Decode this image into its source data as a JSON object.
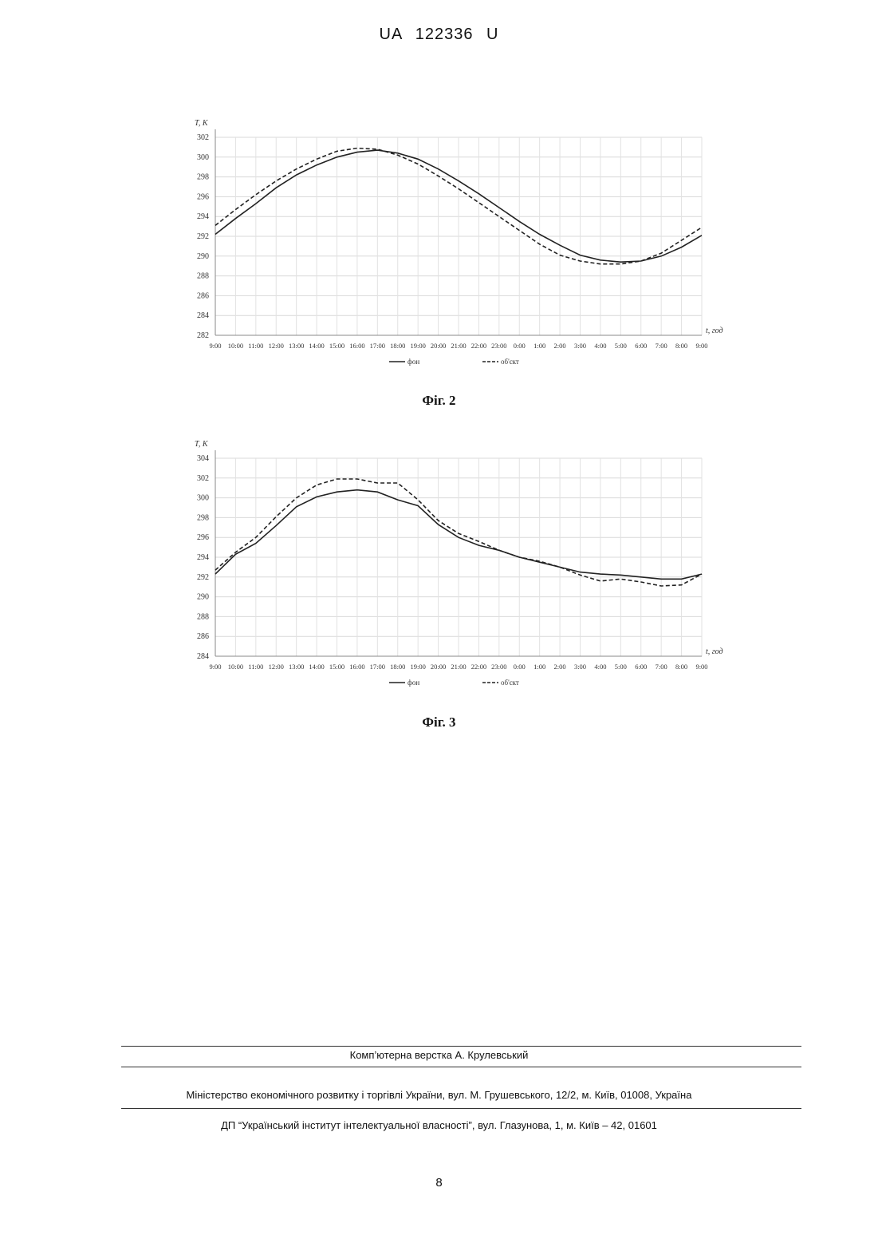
{
  "header": {
    "doc_number": "UA   122336   U"
  },
  "chart_data": [
    {
      "type": "line",
      "y_axis_label": "T, K",
      "x_axis_label": "t, год",
      "x": [
        "9:00",
        "10:00",
        "11:00",
        "12:00",
        "13:00",
        "14:00",
        "15:00",
        "16:00",
        "17:00",
        "18:00",
        "19:00",
        "20:00",
        "21:00",
        "22:00",
        "23:00",
        "0:00",
        "1:00",
        "2:00",
        "3:00",
        "4:00",
        "5:00",
        "6:00",
        "7:00",
        "8:00",
        "9:00"
      ],
      "ylim": [
        282,
        302
      ],
      "yticks": [
        282,
        284,
        286,
        288,
        290,
        292,
        294,
        296,
        298,
        300,
        302
      ],
      "series": [
        {
          "name": "фон",
          "style": "solid",
          "values": [
            292.2,
            293.8,
            295.3,
            296.9,
            298.2,
            299.2,
            300.0,
            300.5,
            300.7,
            300.4,
            299.8,
            298.8,
            297.6,
            296.3,
            294.9,
            293.5,
            292.2,
            291.1,
            290.1,
            289.6,
            289.4,
            289.5,
            290.0,
            290.9,
            292.1
          ]
        },
        {
          "name": "об'єкт",
          "style": "dashed",
          "values": [
            293.1,
            294.7,
            296.2,
            297.6,
            298.8,
            299.8,
            300.6,
            300.9,
            300.8,
            300.2,
            299.3,
            298.1,
            296.8,
            295.4,
            294.0,
            292.6,
            291.2,
            290.1,
            289.5,
            289.2,
            289.2,
            289.5,
            290.3,
            291.6,
            292.9
          ]
        }
      ],
      "legend": "bottom",
      "grid": true
    },
    {
      "type": "line",
      "y_axis_label": "T, K",
      "x_axis_label": "t, год",
      "x": [
        "9:00",
        "10:00",
        "11:00",
        "12:00",
        "13:00",
        "14:00",
        "15:00",
        "16:00",
        "17:00",
        "18:00",
        "19:00",
        "20:00",
        "21:00",
        "22:00",
        "23:00",
        "0:00",
        "1:00",
        "2:00",
        "3:00",
        "4:00",
        "5:00",
        "6:00",
        "7:00",
        "8:00",
        "9:00"
      ],
      "ylim": [
        284,
        304
      ],
      "yticks": [
        284,
        286,
        288,
        290,
        292,
        294,
        296,
        298,
        300,
        302,
        304
      ],
      "series": [
        {
          "name": "фон",
          "style": "solid",
          "values": [
            292.3,
            294.3,
            295.4,
            297.2,
            299.1,
            300.1,
            300.6,
            300.8,
            300.6,
            299.8,
            299.2,
            297.3,
            296.0,
            295.2,
            294.7,
            294.0,
            293.5,
            293.0,
            292.5,
            292.3,
            292.2,
            292.0,
            291.8,
            291.8,
            292.3
          ]
        },
        {
          "name": "об'єкт",
          "style": "dashed",
          "values": [
            292.7,
            294.5,
            296.0,
            298.1,
            300.0,
            301.3,
            301.9,
            301.9,
            301.5,
            301.5,
            299.8,
            297.7,
            296.4,
            295.6,
            294.7,
            294.0,
            293.6,
            293.0,
            292.2,
            291.6,
            291.8,
            291.5,
            291.1,
            291.2,
            292.3
          ]
        }
      ],
      "legend": "bottom",
      "grid": true
    }
  ],
  "captions": [
    "Фіг. 2",
    "Фіг. 3"
  ],
  "footer": {
    "layout_by": "Комп’ютерна верстка А. Крулевський",
    "ministry": "Міністерство економічного розвитку і торгівлі України, вул. М. Грушевського, 12/2, м. Київ, 01008, Україна",
    "institute": "ДП “Український інститут інтелектуальної власності”, вул. Глазунова, 1, м. Київ – 42, 01601"
  },
  "page_number": "8"
}
